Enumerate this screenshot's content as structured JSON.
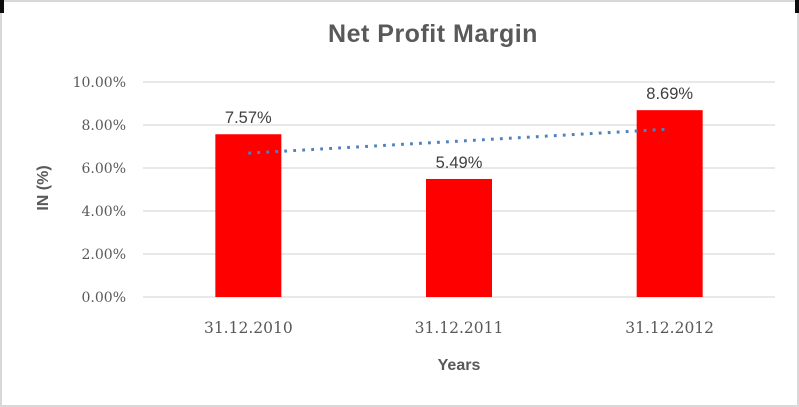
{
  "frame": {
    "background": "#ffffff",
    "border_color": "#d8d8d8",
    "corner_mark_color": "#0d0d0d"
  },
  "chart_data": {
    "type": "bar",
    "title": "Net Profit Margin",
    "xlabel": "Years",
    "ylabel": "IN (%)",
    "categories": [
      "31.12.2010",
      "31.12.2011",
      "31.12.2012"
    ],
    "series": [
      {
        "name": "Net Profit Margin",
        "values": [
          7.57,
          5.49,
          8.69
        ]
      }
    ],
    "data_labels": [
      "7.57%",
      "5.49%",
      "8.69%"
    ],
    "ylim": [
      0,
      10
    ],
    "ytick_step": 2,
    "ytick_labels": [
      "0.00%",
      "2.00%",
      "4.00%",
      "6.00%",
      "8.00%",
      "10.00%"
    ],
    "grid": true,
    "legend": "none",
    "bar_color": "#ff0000",
    "gridline_color": "#d9d9d9",
    "axis_text_color": "#595959",
    "data_label_color": "#3f3f3f",
    "trendline": {
      "type": "linear",
      "style": "dotted",
      "color": "#4f81bd",
      "start_value": 6.69,
      "end_value": 7.81
    }
  }
}
